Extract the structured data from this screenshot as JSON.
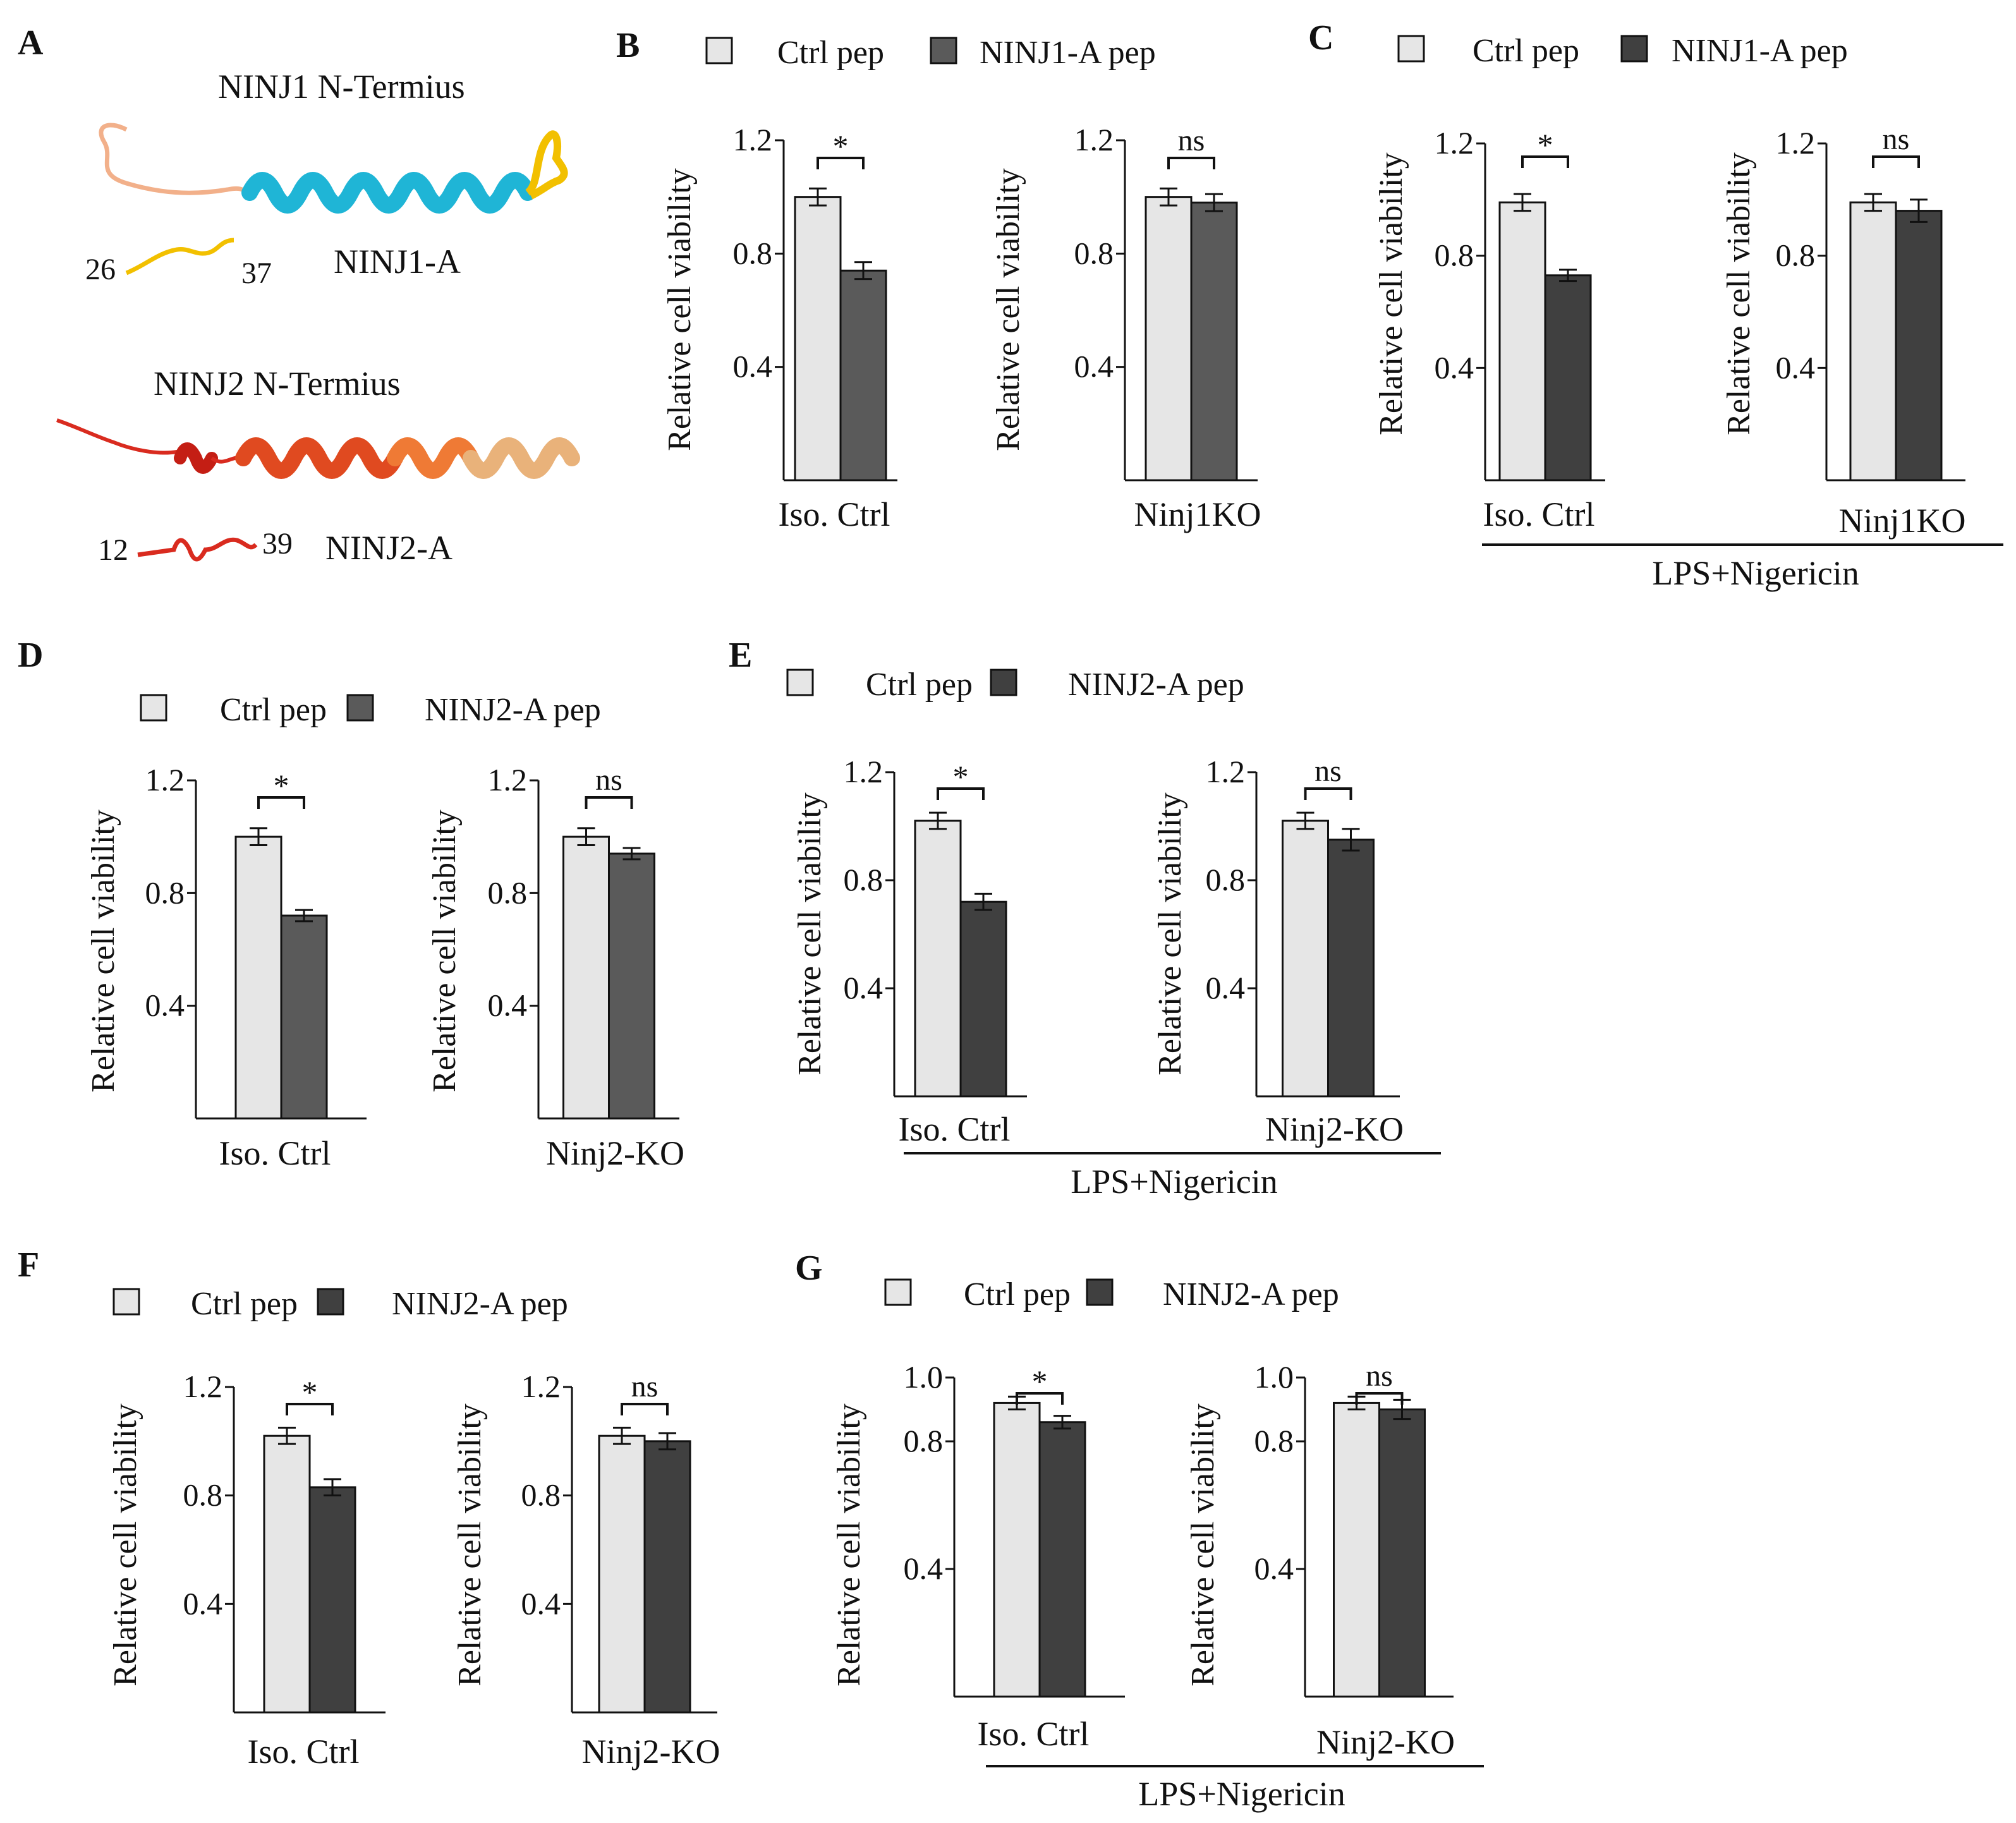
{
  "colors": {
    "ctrl": "#e6e6e6",
    "treat_dark": "#404040",
    "treat_mid": "#5a5a5a",
    "axis": "#111111",
    "ninj1_loop": "#f2b08a",
    "ninj1_helix": "#1fb5d6",
    "ninj1_end": "#f2c000",
    "ninj2_red": "#d92b1f",
    "ninj2_orange": "#ef6b2a",
    "ninj2_tan": "#e9b27a"
  },
  "panel_a": {
    "letter": "A",
    "ninj1_title": "NINJ1 N-Termius",
    "ninj1_start": "26",
    "ninj1_end": "37",
    "ninj1_fragment": "NINJ1-A",
    "ninj2_title": "NINJ2 N-Termius",
    "ninj2_start": "12",
    "ninj2_end": "39",
    "ninj2_fragment": "NINJ2-A"
  },
  "chart_data": [
    {
      "panel": "B",
      "type": "bar",
      "legend": [
        "Ctrl pep",
        "NINJ1-A pep"
      ],
      "ylabel": "Relative cell viability",
      "yticks": [
        0.4,
        0.8,
        1.2
      ],
      "ylim": [
        0,
        1.2
      ],
      "group_label": "",
      "subplots": [
        {
          "category": "Iso. Ctrl",
          "values": [
            1.0,
            0.74
          ],
          "errors": [
            0.03,
            0.03
          ],
          "sig": "*"
        },
        {
          "category": "Ninj1KO",
          "values": [
            1.0,
            0.98
          ],
          "errors": [
            0.03,
            0.03
          ],
          "sig": "ns"
        }
      ]
    },
    {
      "panel": "C",
      "type": "bar",
      "legend": [
        "Ctrl pep",
        "NINJ1-A pep"
      ],
      "ylabel": "Relative cell viability",
      "yticks": [
        0.4,
        0.8,
        1.2
      ],
      "ylim": [
        0,
        1.2
      ],
      "group_label": "LPS+Nigericin",
      "subplots": [
        {
          "category": "Iso. Ctrl",
          "values": [
            0.99,
            0.73
          ],
          "errors": [
            0.03,
            0.02
          ],
          "sig": "*"
        },
        {
          "category": "Ninj1KO",
          "values": [
            0.99,
            0.96
          ],
          "errors": [
            0.03,
            0.04
          ],
          "sig": "ns"
        }
      ]
    },
    {
      "panel": "D",
      "type": "bar",
      "legend": [
        "Ctrl pep",
        "NINJ2-A pep"
      ],
      "ylabel": "Relative cell viability",
      "yticks": [
        0.4,
        0.8,
        1.2
      ],
      "ylim": [
        0,
        1.2
      ],
      "group_label": "",
      "subplots": [
        {
          "category": "Iso. Ctrl",
          "values": [
            1.0,
            0.72
          ],
          "errors": [
            0.03,
            0.02
          ],
          "sig": "*"
        },
        {
          "category": "Ninj2-KO",
          "values": [
            1.0,
            0.94
          ],
          "errors": [
            0.03,
            0.02
          ],
          "sig": "ns"
        }
      ]
    },
    {
      "panel": "E",
      "type": "bar",
      "legend": [
        "Ctrl pep",
        "NINJ2-A pep"
      ],
      "ylabel": "Relative cell viability",
      "yticks": [
        0.4,
        0.8,
        1.2
      ],
      "ylim": [
        0,
        1.2
      ],
      "group_label": "LPS+Nigericin",
      "subplots": [
        {
          "category": "Iso. Ctrl",
          "values": [
            1.02,
            0.72
          ],
          "errors": [
            0.03,
            0.03
          ],
          "sig": "*"
        },
        {
          "category": "Ninj2-KO",
          "values": [
            1.02,
            0.95
          ],
          "errors": [
            0.03,
            0.04
          ],
          "sig": "ns"
        }
      ]
    },
    {
      "panel": "F",
      "type": "bar",
      "legend": [
        "Ctrl pep",
        "NINJ2-A pep"
      ],
      "ylabel": "Relative cell viability",
      "yticks": [
        0.4,
        0.8,
        1.2
      ],
      "ylim": [
        0,
        1.2
      ],
      "group_label": "",
      "subplots": [
        {
          "category": "Iso. Ctrl",
          "values": [
            1.02,
            0.83
          ],
          "errors": [
            0.03,
            0.03
          ],
          "sig": "*"
        },
        {
          "category": "Ninj2-KO",
          "values": [
            1.02,
            1.0
          ],
          "errors": [
            0.03,
            0.03
          ],
          "sig": "ns"
        }
      ]
    },
    {
      "panel": "G",
      "type": "bar",
      "legend": [
        "Ctrl pep",
        "NINJ2-A pep"
      ],
      "ylabel": "Relative cell viability",
      "yticks": [
        0.4,
        0.8,
        1.0
      ],
      "ylim": [
        0,
        1.0
      ],
      "group_label": "LPS+Nigericin",
      "subplots": [
        {
          "category": "Iso. Ctrl",
          "values": [
            0.92,
            0.86
          ],
          "errors": [
            0.02,
            0.02
          ],
          "sig": "*"
        },
        {
          "category": "Ninj2-KO",
          "values": [
            0.92,
            0.9
          ],
          "errors": [
            0.02,
            0.03
          ],
          "sig": "ns"
        }
      ]
    }
  ]
}
